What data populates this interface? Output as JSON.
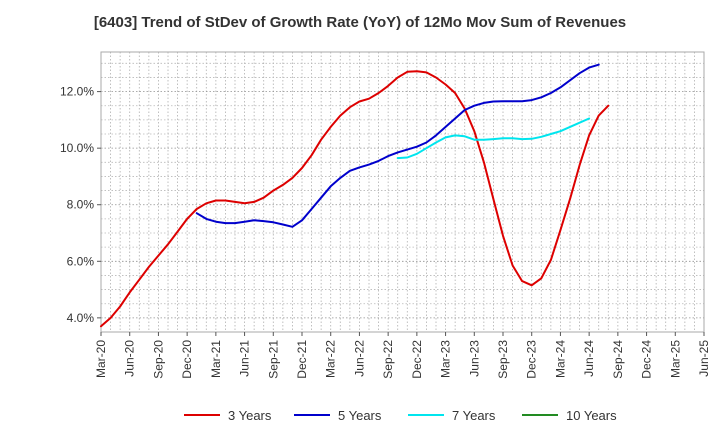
{
  "chart_data": {
    "type": "line",
    "title": "[6403]  Trend of StDev of Growth Rate (YoY) of 12Mo Mov Sum of Revenues",
    "xlabel": "",
    "ylabel": "",
    "ylim": [
      3.5,
      13.4
    ],
    "y_ticks": [
      4.0,
      6.0,
      8.0,
      10.0,
      12.0
    ],
    "y_tick_labels": [
      "4.0%",
      "6.0%",
      "8.0%",
      "10.0%",
      "12.0%"
    ],
    "x_tick_labels": [
      "Mar-20",
      "Jun-20",
      "Sep-20",
      "Dec-20",
      "Mar-21",
      "Jun-21",
      "Sep-21",
      "Dec-21",
      "Mar-22",
      "Jun-22",
      "Sep-22",
      "Dec-22",
      "Mar-23",
      "Jun-23",
      "Sep-23",
      "Dec-23",
      "Mar-24",
      "Jun-24",
      "Sep-24",
      "Dec-24",
      "Mar-25",
      "Jun-25"
    ],
    "grid": true,
    "legend_position": "bottom",
    "series": [
      {
        "name": "3 Years",
        "color": "#dd0000",
        "start_index": 0,
        "values": [
          3.7,
          4.0,
          4.4,
          4.9,
          5.35,
          5.8,
          6.2,
          6.6,
          7.05,
          7.5,
          7.85,
          8.05,
          8.15,
          8.15,
          8.1,
          8.05,
          8.1,
          8.25,
          8.5,
          8.7,
          8.95,
          9.3,
          9.75,
          10.3,
          10.75,
          11.15,
          11.45,
          11.65,
          11.75,
          11.95,
          12.2,
          12.5,
          12.7,
          12.72,
          12.68,
          12.5,
          12.25,
          11.95,
          11.4,
          10.6,
          9.5,
          8.2,
          6.9,
          5.85,
          5.3,
          5.15,
          5.4,
          6.05,
          7.1,
          8.2,
          9.4,
          10.45,
          11.15,
          11.5
        ]
      },
      {
        "name": "5 Years",
        "color": "#0000cc",
        "start_index": 10,
        "values": [
          7.7,
          7.5,
          7.4,
          7.35,
          7.35,
          7.4,
          7.45,
          7.42,
          7.38,
          7.3,
          7.22,
          7.45,
          7.85,
          8.25,
          8.65,
          8.95,
          9.2,
          9.32,
          9.42,
          9.55,
          9.72,
          9.85,
          9.95,
          10.05,
          10.2,
          10.45,
          10.75,
          11.05,
          11.35,
          11.5,
          11.6,
          11.65,
          11.66,
          11.66,
          11.66,
          11.7,
          11.8,
          11.95,
          12.15,
          12.4,
          12.65,
          12.85,
          12.95
        ]
      },
      {
        "name": "7 Years",
        "color": "#00e5ee",
        "start_index": 31,
        "values": [
          9.65,
          9.67,
          9.8,
          10.0,
          10.2,
          10.38,
          10.45,
          10.42,
          10.3,
          10.3,
          10.32,
          10.35,
          10.35,
          10.32,
          10.33,
          10.4,
          10.5,
          10.6,
          10.75,
          10.9,
          11.05
        ]
      },
      {
        "name": "10 Years",
        "color": "#228b22",
        "start_index": 0,
        "values": []
      }
    ]
  }
}
